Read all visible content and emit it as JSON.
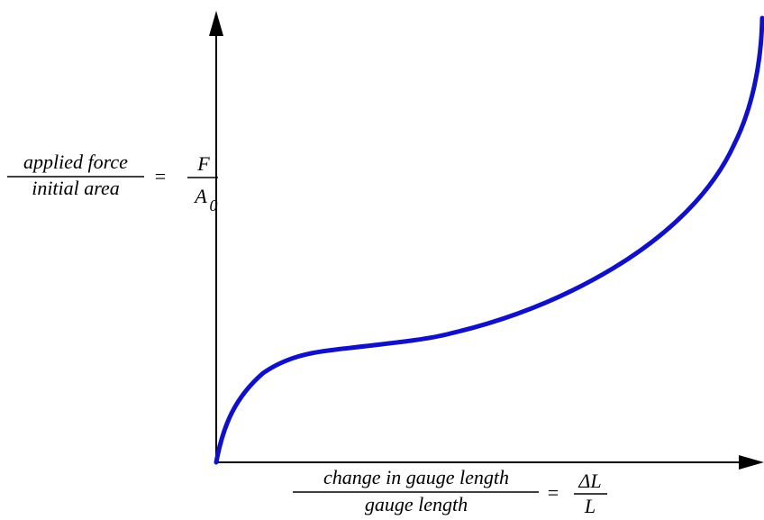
{
  "y_label": {
    "numerator": "applied force",
    "denominator": "initial area",
    "equals": "=",
    "symbol_numerator": "F",
    "symbol_denominator": "A",
    "subscript": "0"
  },
  "x_label": {
    "numerator": "change in gauge length",
    "denominator": "gauge length",
    "equals": "=",
    "symbol_numerator": "ΔL",
    "symbol_denominator": "L"
  }
}
